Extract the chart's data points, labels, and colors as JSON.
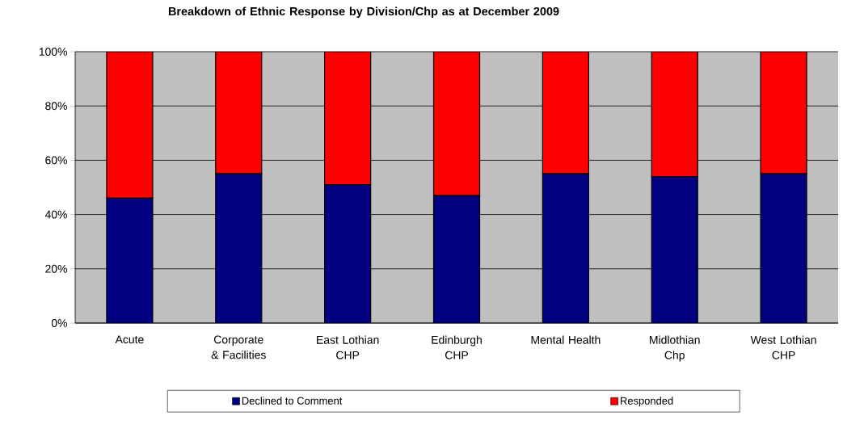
{
  "chart_data": {
    "type": "bar",
    "stacked": true,
    "title": "Breakdown of Ethnic Response by Division/Chp as at December 2009",
    "categories": [
      "Acute",
      "Corporate & Facilities",
      "East Lothian CHP",
      "Edinburgh CHP",
      "Mental Health",
      "Midlothian Chp",
      "West Lothian CHP"
    ],
    "series": [
      {
        "name": "Declined to Comment",
        "color": "#000080",
        "values": [
          46,
          55,
          51,
          47,
          55,
          54,
          55
        ]
      },
      {
        "name": "Responded",
        "color": "#ff0000",
        "values": [
          54,
          45,
          49,
          53,
          45,
          46,
          45
        ]
      }
    ],
    "ylim": [
      0,
      100
    ],
    "yticks": [
      {
        "value": 0,
        "label": "0%"
      },
      {
        "value": 20,
        "label": "20%"
      },
      {
        "value": 40,
        "label": "40%"
      },
      {
        "value": 60,
        "label": "60%"
      },
      {
        "value": 80,
        "label": "80%"
      },
      {
        "value": 100,
        "label": "100%"
      }
    ],
    "grid": "y",
    "legend": "bottom"
  }
}
